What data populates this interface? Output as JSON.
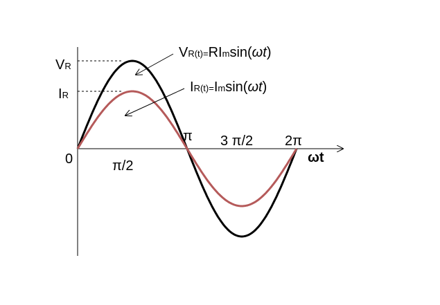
{
  "axis_labels": {
    "origin": "0",
    "half_pi": "π/2",
    "pi": "π",
    "three_half_pi": "3 π/2",
    "two_pi": "2π",
    "x_axis": "ωt"
  },
  "peak_labels": {
    "voltage": {
      "main": "V",
      "sub": "R"
    },
    "current": {
      "main": "I",
      "sub": "R"
    }
  },
  "formulas": {
    "voltage": {
      "lhs": "V",
      "lhs_sub": "R(t)=",
      "coef": "RI",
      "coef_sub": "m",
      "func": "sin(",
      "arg": "ωt",
      "close": ")"
    },
    "current": {
      "lhs": "I",
      "lhs_sub": "R(t)=",
      "coef": "I",
      "coef_sub": "m",
      "func": "sin(",
      "arg": "ωt",
      "close": ")"
    }
  }
}
